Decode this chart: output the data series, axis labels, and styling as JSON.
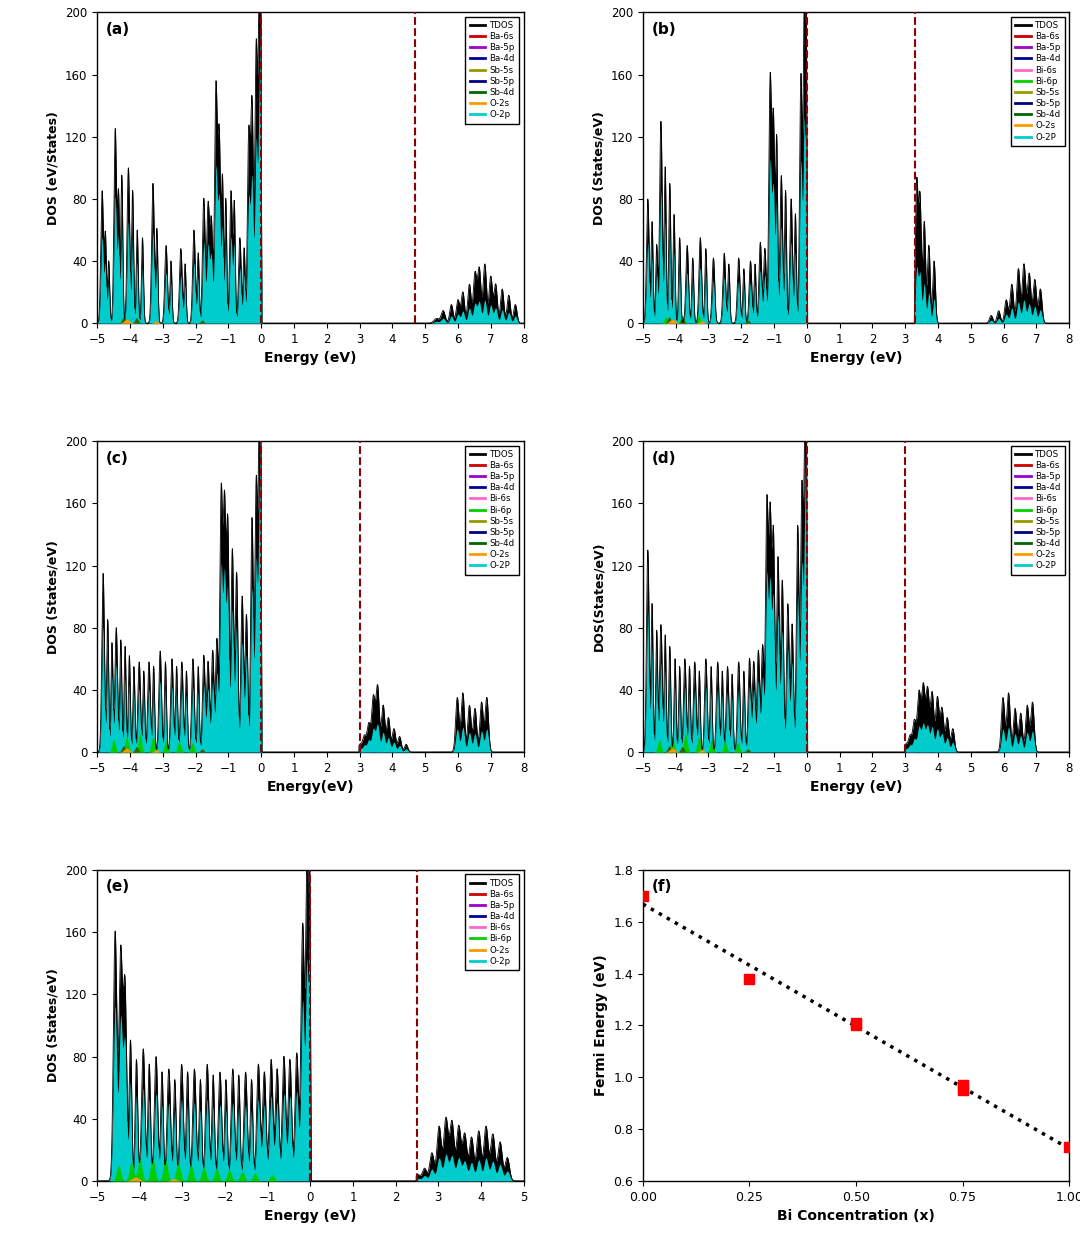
{
  "panel_labels": [
    "(a)",
    "(b)",
    "(c)",
    "(d)",
    "(e)",
    "(f)"
  ],
  "dos_ylim": [
    0,
    200
  ],
  "dos_yticks": [
    0,
    40,
    80,
    120,
    160,
    200
  ],
  "panel_a": {
    "xlim": [
      -5,
      8
    ],
    "xticks": [
      -5,
      -4,
      -3,
      -2,
      -1,
      0,
      1,
      2,
      3,
      4,
      5,
      6,
      7,
      8
    ],
    "vlines": [
      0.0,
      4.7
    ],
    "ylabel": "DOS (eV/States)",
    "xlabel": "Energy (eV)",
    "legend": [
      "TDOS",
      "Ba-6s",
      "Ba-5p",
      "Ba-4d",
      "Sb-5s",
      "Sb-5p",
      "Sb-4d",
      "O-2s",
      "O-2p"
    ],
    "legend_colors": [
      "black",
      "#cc0000",
      "#9900cc",
      "#000099",
      "#999900",
      "#000080",
      "#006600",
      "#ff9900",
      "#00cccc"
    ]
  },
  "panel_b": {
    "xlim": [
      -5,
      8
    ],
    "xticks": [
      -5,
      -4,
      -3,
      -2,
      -1,
      0,
      1,
      2,
      3,
      4,
      5,
      6,
      7,
      8
    ],
    "vlines": [
      0.0,
      3.3
    ],
    "ylabel": "DOS (States/eV)",
    "xlabel": "Energy (eV)",
    "legend": [
      "TDOS",
      "Ba-6s",
      "Ba-5p",
      "Ba-4d",
      "Bi-6s",
      "Bi-6p",
      "Sb-5s",
      "Sb-5p",
      "Sb-4d",
      "O-2s",
      "O-2P"
    ],
    "legend_colors": [
      "black",
      "#cc0000",
      "#9900cc",
      "#000099",
      "#ff66cc",
      "#00cc00",
      "#999900",
      "#000080",
      "#006600",
      "#ff9900",
      "#00cccc"
    ]
  },
  "panel_c": {
    "xlim": [
      -5,
      8
    ],
    "xticks": [
      -5,
      -4,
      -3,
      -2,
      -1,
      0,
      1,
      2,
      3,
      4,
      5,
      6,
      7,
      8
    ],
    "vlines": [
      0.0,
      3.0
    ],
    "ylabel": "DOS (States/eV)",
    "xlabel": "Energy(eV)",
    "legend": [
      "TDOS",
      "Ba-6s",
      "Ba-5p",
      "Ba-4d",
      "Bi-6s",
      "Bi-6p",
      "Sb-5s",
      "Sb-5p",
      "Sb-4d",
      "O-2s",
      "O-2P"
    ],
    "legend_colors": [
      "black",
      "#cc0000",
      "#9900cc",
      "#000099",
      "#ff66cc",
      "#00cc00",
      "#999900",
      "#000080",
      "#006600",
      "#ff9900",
      "#00cccc"
    ]
  },
  "panel_d": {
    "xlim": [
      -5,
      8
    ],
    "xticks": [
      -5,
      -4,
      -3,
      -2,
      -1,
      0,
      1,
      2,
      3,
      4,
      5,
      6,
      7,
      8
    ],
    "vlines": [
      0.0,
      3.0
    ],
    "ylabel": "DOS(States/eV)",
    "xlabel": "Energy (eV)",
    "legend": [
      "TDOS",
      "Ba-6s",
      "Ba-5p",
      "Ba-4d",
      "Bi-6s",
      "Bi-6p",
      "Sb-5s",
      "Sb-5p",
      "Sb-4d",
      "O-2s",
      "O-2P"
    ],
    "legend_colors": [
      "black",
      "#cc0000",
      "#9900cc",
      "#000099",
      "#ff66cc",
      "#00cc00",
      "#999900",
      "#000080",
      "#006600",
      "#ff9900",
      "#00cccc"
    ]
  },
  "panel_e": {
    "xlim": [
      -5,
      5
    ],
    "xticks": [
      -5,
      -4,
      -3,
      -2,
      -1,
      0,
      1,
      2,
      3,
      4,
      5
    ],
    "vlines": [
      0.0,
      2.5
    ],
    "ylabel": "DOS (States/eV)",
    "xlabel": "Energy (eV)",
    "legend": [
      "TDOS",
      "Ba-6s",
      "Ba-5p",
      "Ba-4d",
      "Bi-6s",
      "Bi-6p",
      "O-2s",
      "O-2p"
    ],
    "legend_colors": [
      "black",
      "#cc0000",
      "#9900cc",
      "#000099",
      "#ff66cc",
      "#00cc00",
      "#ff9900",
      "#00cccc"
    ]
  },
  "panel_f": {
    "xlabel": "Bi Concentration (x)",
    "ylabel": "Fermi Energy (eV)",
    "xlim": [
      0.0,
      1.0
    ],
    "ylim": [
      0.6,
      1.8
    ],
    "xticks": [
      0.0,
      0.25,
      0.5,
      0.75,
      1.0
    ],
    "yticks": [
      0.6,
      0.8,
      1.0,
      1.2,
      1.4,
      1.6,
      1.8
    ],
    "x_data": [
      0.0,
      0.25,
      0.5,
      0.5,
      0.75,
      0.75,
      1.0
    ],
    "y_data": [
      1.7,
      1.38,
      1.21,
      1.2,
      0.97,
      0.95,
      0.73
    ]
  }
}
